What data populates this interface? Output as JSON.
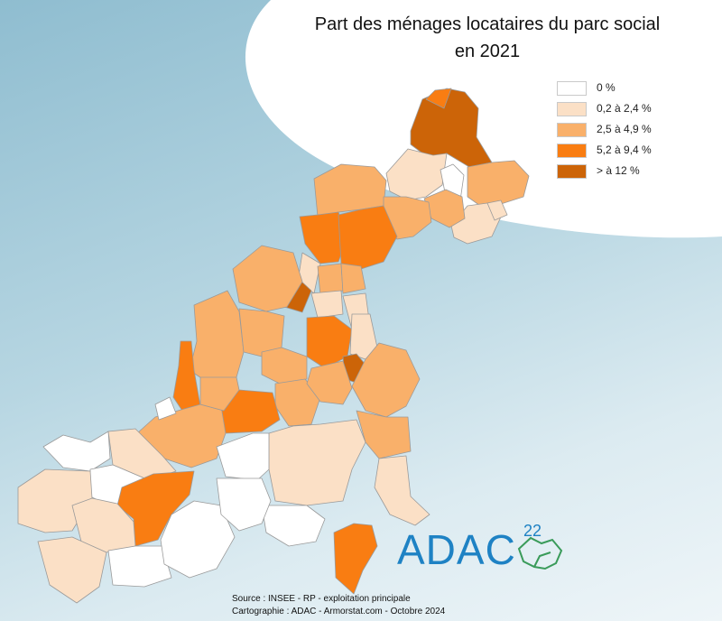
{
  "title": [
    "Part des ménages locataires du parc social",
    "en 2021"
  ],
  "legend": [
    {
      "label": "0 %",
      "color": "#ffffff"
    },
    {
      "label": "0,2 à 2,4 %",
      "color": "#fbe0c6"
    },
    {
      "label": "2,5 à 4,9 %",
      "color": "#f9b06a"
    },
    {
      "label": "5,2 à 9,4 %",
      "color": "#f97d12"
    },
    {
      "label": "> à 12 %",
      "color": "#cc6408"
    }
  ],
  "map_regions": [
    {
      "name": "commune-n1",
      "class": 4
    },
    {
      "name": "commune-n2",
      "class": 3
    },
    {
      "name": "commune-n3",
      "class": 1
    },
    {
      "name": "commune-n4",
      "class": 0
    },
    {
      "name": "commune-n5",
      "class": 2
    },
    {
      "name": "commune-n6",
      "class": 1
    },
    {
      "name": "commune-n7",
      "class": 2
    },
    {
      "name": "commune-n8",
      "class": 1
    },
    {
      "name": "commune-nw1",
      "class": 2
    },
    {
      "name": "commune-nw2",
      "class": 2
    },
    {
      "name": "commune-c1",
      "class": 3
    },
    {
      "name": "commune-c2",
      "class": 3
    },
    {
      "name": "commune-c3",
      "class": 1
    },
    {
      "name": "commune-c4",
      "class": 2
    },
    {
      "name": "commune-c5",
      "class": 2
    },
    {
      "name": "commune-c6",
      "class": 4
    },
    {
      "name": "commune-c7",
      "class": 1
    },
    {
      "name": "commune-c8",
      "class": 2
    },
    {
      "name": "commune-c9",
      "class": 1
    },
    {
      "name": "commune-w1",
      "class": 2
    },
    {
      "name": "commune-w2",
      "class": 2
    },
    {
      "name": "commune-w3",
      "class": 3
    },
    {
      "name": "commune-w4",
      "class": 2
    },
    {
      "name": "commune-m1",
      "class": 3
    },
    {
      "name": "commune-m2",
      "class": 1
    },
    {
      "name": "commune-m3",
      "class": 2
    },
    {
      "name": "commune-m4",
      "class": 2
    },
    {
      "name": "commune-m5",
      "class": 4
    },
    {
      "name": "commune-m6",
      "class": 2
    },
    {
      "name": "commune-m7",
      "class": 2
    },
    {
      "name": "commune-m8",
      "class": 3
    },
    {
      "name": "commune-m9",
      "class": 2
    },
    {
      "name": "commune-m10",
      "class": 0
    },
    {
      "name": "commune-s1",
      "class": 0
    },
    {
      "name": "commune-s2",
      "class": 1
    },
    {
      "name": "commune-s3",
      "class": 0
    },
    {
      "name": "commune-s4",
      "class": 3
    },
    {
      "name": "commune-s5",
      "class": 1
    },
    {
      "name": "commune-s6",
      "class": 1
    },
    {
      "name": "commune-s7",
      "class": 0
    },
    {
      "name": "commune-s8",
      "class": 0
    },
    {
      "name": "commune-s9",
      "class": 1
    },
    {
      "name": "commune-s10",
      "class": 1
    },
    {
      "name": "commune-s11",
      "class": 2
    },
    {
      "name": "commune-s12",
      "class": 3
    },
    {
      "name": "commune-s13",
      "class": 0
    },
    {
      "name": "commune-s14",
      "class": 0
    },
    {
      "name": "commune-s15",
      "class": 0
    },
    {
      "name": "commune-s16",
      "class": 1
    }
  ],
  "logo": {
    "text": "ADAC",
    "number": "22"
  },
  "credits": [
    "Source : INSEE - RP - exploitation principale",
    "Cartographie : ADAC - Armorstat.com - Octobre 2024"
  ]
}
